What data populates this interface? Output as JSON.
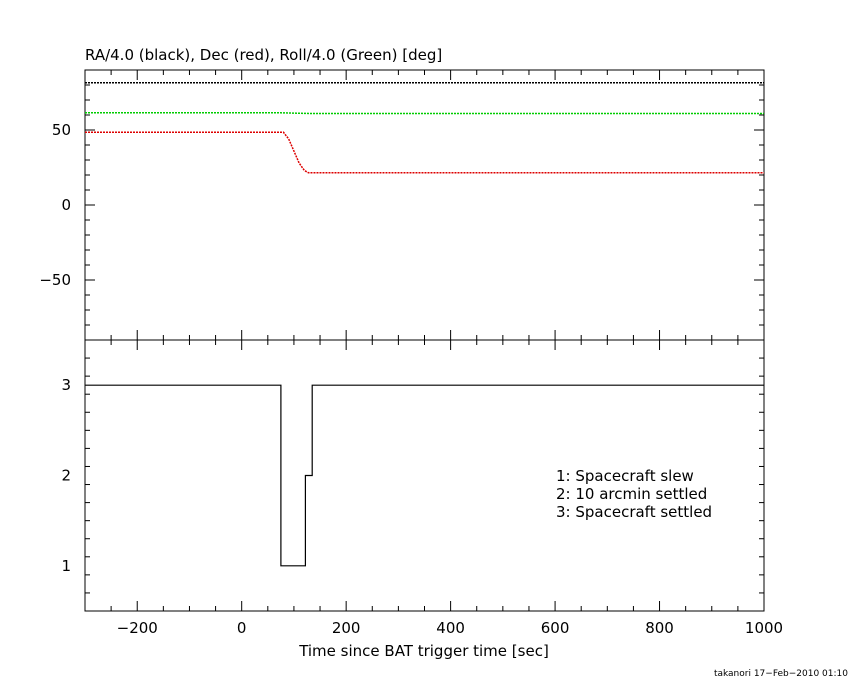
{
  "chart_data": [
    {
      "type": "line",
      "title": "RA/4.0 (black), Dec (red), Roll/4.0 (Green) [deg]",
      "xlim": [
        -300,
        1000
      ],
      "ylim": [
        -90,
        90
      ],
      "yticks": [
        50,
        0,
        -50
      ],
      "ytick_labels": [
        "50",
        "0",
        "−50"
      ],
      "series": [
        {
          "color": "#000000",
          "x": [
            -300,
            1000
          ],
          "y": [
            81.5,
            81.5
          ]
        },
        {
          "color": "#00cc00",
          "x": [
            -300,
            75,
            130,
            1000
          ],
          "y": [
            61.5,
            61.5,
            61.0,
            61.0
          ]
        },
        {
          "color": "#dd0000",
          "x": [
            -300,
            80,
            90,
            100,
            110,
            120,
            128,
            1000
          ],
          "y": [
            48.5,
            48.5,
            44.0,
            36.0,
            28.0,
            23.0,
            21.5,
            21.5
          ]
        }
      ],
      "grid": false
    },
    {
      "type": "line",
      "step": true,
      "xlabel": "Time since BAT trigger time [sec]",
      "xlim": [
        -300,
        1000
      ],
      "ylim": [
        0.5,
        3.5
      ],
      "xticks": [
        -200,
        0,
        200,
        400,
        600,
        800,
        1000
      ],
      "xtick_labels": [
        "−200",
        "0",
        "200",
        "400",
        "600",
        "800",
        "1000"
      ],
      "yticks": [
        3,
        2,
        1
      ],
      "ytick_labels": [
        "3",
        "2",
        "1"
      ],
      "series": [
        {
          "color": "#000000",
          "x": [
            -300,
            75,
            75,
            122,
            122,
            135,
            135,
            1000
          ],
          "y": [
            3,
            3,
            1,
            1,
            2,
            2,
            3,
            3
          ]
        }
      ],
      "annotations": [
        "1: Spacecraft slew",
        "2: 10 arcmin settled",
        "3: Spacecraft settled"
      ],
      "grid": false
    }
  ],
  "footer": "takanori 17−Feb−2010 01:10"
}
